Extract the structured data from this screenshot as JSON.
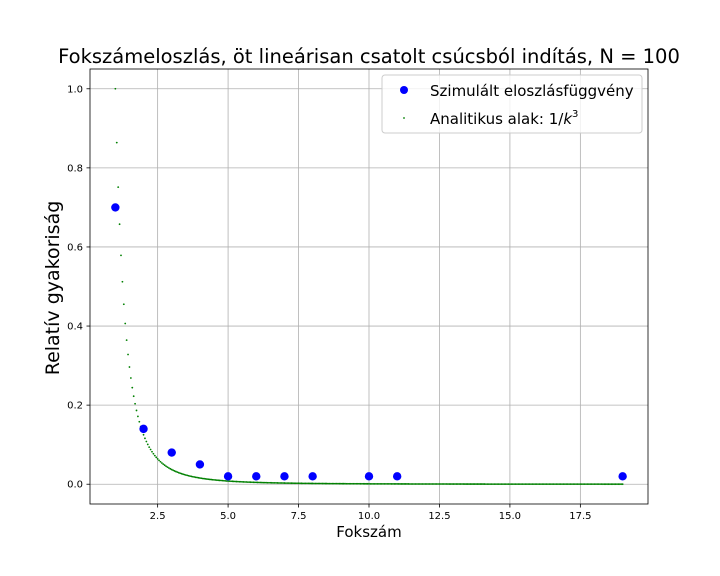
{
  "chart_data": {
    "type": "scatter",
    "title": "Fokszámeloszlás, öt lineárisan csatolt csúcsból indítás, N = 100",
    "xlabel": "Fokszám",
    "ylabel": "Relatív gyakoriság",
    "xlim": [
      0.1,
      19.9
    ],
    "ylim": [
      -0.05,
      1.05
    ],
    "xticks": [
      2.5,
      5.0,
      7.5,
      10.0,
      12.5,
      15.0,
      17.5
    ],
    "xtick_labels": [
      "2.5",
      "5.0",
      "7.5",
      "10.0",
      "12.5",
      "15.0",
      "17.5"
    ],
    "yticks": [
      0.0,
      0.2,
      0.4,
      0.6,
      0.8,
      1.0
    ],
    "ytick_labels": [
      "0.0",
      "0.2",
      "0.4",
      "0.6",
      "0.8",
      "1.0"
    ],
    "grid": true,
    "legend_position": "top-right",
    "series": [
      {
        "name": "Szimulált eloszlásfüggvény",
        "color": "#0000ff",
        "marker": "circle",
        "x": [
          1,
          2,
          3,
          4,
          5,
          6,
          7,
          8,
          10,
          11,
          19
        ],
        "y": [
          0.7,
          0.14,
          0.08,
          0.05,
          0.02,
          0.02,
          0.02,
          0.02,
          0.02,
          0.02,
          0.02
        ]
      },
      {
        "name": "Analitikus alak: 1/k³",
        "legend_prefix": "Analitikus alak: 1/",
        "legend_var": "k",
        "legend_exp": "3",
        "color": "#008000",
        "marker": "point",
        "function": "1/k^3",
        "x_range": [
          1,
          19
        ],
        "step": 0.05
      }
    ]
  }
}
